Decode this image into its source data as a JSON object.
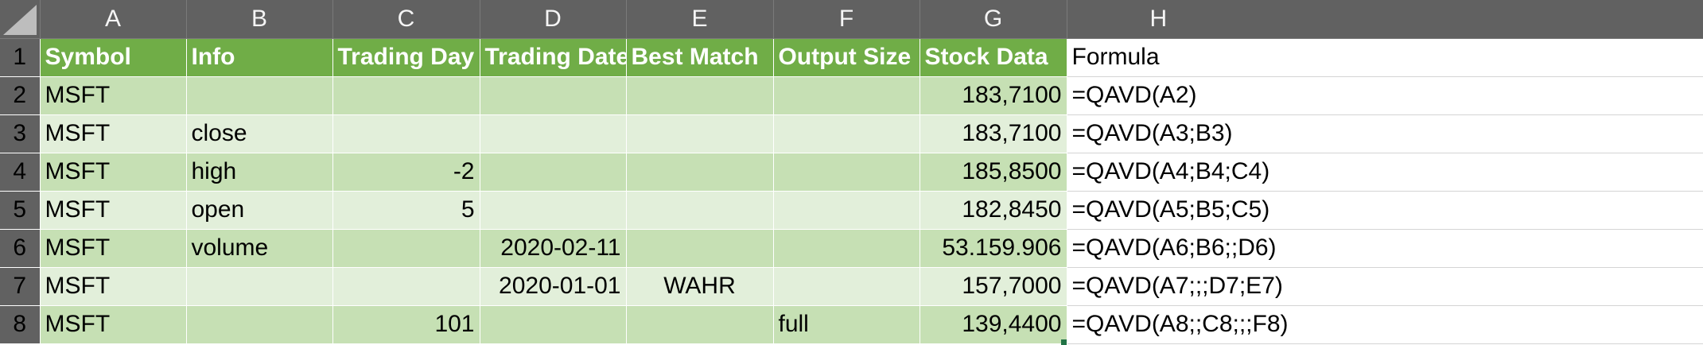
{
  "columns": [
    "A",
    "B",
    "C",
    "D",
    "E",
    "F",
    "G",
    "H"
  ],
  "row_numbers": [
    "1",
    "2",
    "3",
    "4",
    "5",
    "6",
    "7",
    "8"
  ],
  "header": {
    "symbol": "Symbol",
    "info": "Info",
    "trading_day": "Trading Day",
    "trading_date": "Trading Date",
    "best_match": "Best Match",
    "output_size": "Output Size",
    "stock_data": "Stock Data",
    "formula": "Formula"
  },
  "rows": [
    {
      "symbol": "MSFT",
      "info": "",
      "trading_day": "",
      "trading_date": "",
      "best_match": "",
      "output_size": "",
      "stock_data": "183,7100",
      "formula": "=QAVD(A2)"
    },
    {
      "symbol": "MSFT",
      "info": "close",
      "trading_day": "",
      "trading_date": "",
      "best_match": "",
      "output_size": "",
      "stock_data": "183,7100",
      "formula": "=QAVD(A3;B3)"
    },
    {
      "symbol": "MSFT",
      "info": "high",
      "trading_day": "-2",
      "trading_date": "",
      "best_match": "",
      "output_size": "",
      "stock_data": "185,8500",
      "formula": "=QAVD(A4;B4;C4)"
    },
    {
      "symbol": "MSFT",
      "info": "open",
      "trading_day": "5",
      "trading_date": "",
      "best_match": "",
      "output_size": "",
      "stock_data": "182,8450",
      "formula": "=QAVD(A5;B5;C5)"
    },
    {
      "symbol": "MSFT",
      "info": "volume",
      "trading_day": "",
      "trading_date": "2020-02-11",
      "best_match": "",
      "output_size": "",
      "stock_data": "53.159.906",
      "formula": "=QAVD(A6;B6;;D6)"
    },
    {
      "symbol": "MSFT",
      "info": "",
      "trading_day": "",
      "trading_date": "2020-01-01",
      "best_match": "WAHR",
      "output_size": "",
      "stock_data": "157,7000",
      "formula": "=QAVD(A7;;;D7;E7)"
    },
    {
      "symbol": "MSFT",
      "info": "",
      "trading_day": "101",
      "trading_date": "",
      "best_match": "",
      "output_size": "full",
      "stock_data": "139,4400",
      "formula": "=QAVD(A8;;C8;;;F8)"
    }
  ],
  "colors": {
    "header_green": "#70ad47",
    "band_dark": "#c6e0b4",
    "band_light": "#e2efda",
    "chrome_gray": "#616161"
  }
}
